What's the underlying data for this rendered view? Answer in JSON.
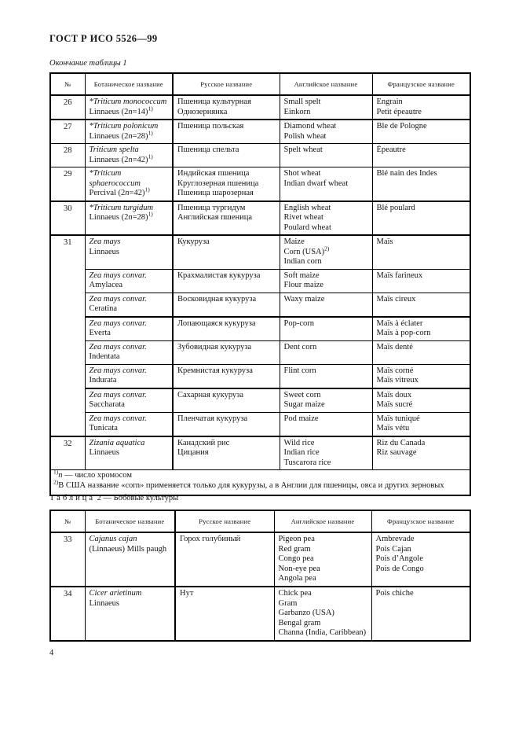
{
  "document": {
    "header": "ГОСТ Р ИСО 5526—99",
    "table1_caption": "Окончание таблицы 1",
    "table2_caption": {
      "label": "Таблица",
      "rest": "2 — Бобовые культуры"
    },
    "page_number": "4"
  },
  "columns": [
    "№",
    "Ботаническое название",
    "Русское название",
    "Английское название",
    "Французское название"
  ],
  "table1": {
    "rows": [
      {
        "num": "26",
        "h": 30,
        "bb": 2,
        "botanical": [
          "{i}*Triticum monococcum{/i}",
          "Linnaeus (2{i}n{/i}=14){sup}1){/sup}"
        ],
        "russian": [
          "Пшеница культурная",
          "Однозернянка"
        ],
        "english": [
          "Small spelt",
          "Einkorn"
        ],
        "french": [
          "Engrain",
          "Petit épeautre"
        ]
      },
      {
        "num": "27",
        "h": 30,
        "bb": 1,
        "botanical": [
          "{i}*Triticum polonicum{/i}",
          "Linnaeus (2{i}n{/i}=28){sup}1){/sup}"
        ],
        "russian": [
          "Пшеница польская"
        ],
        "english": [
          "Diamond wheat",
          "Polish wheat"
        ],
        "french": [
          "Ble de Pologne"
        ]
      },
      {
        "num": "28",
        "h": 28,
        "bb": 1,
        "botanical": [
          "{i}Triticum spelta{/i}",
          "Linnaeus (2{i}n{/i}=42){sup}1){/sup}"
        ],
        "russian": [
          "Пшеница спельта"
        ],
        "english": [
          "Spelt wheat"
        ],
        "french": [
          "Épeautre"
        ]
      },
      {
        "num": "29",
        "h": 41,
        "bb": 2,
        "botanical": [
          "{i}*Triticum sphaerococcum{/i}",
          "Percival (2{i}n{/i}=42){sup}1){/sup}"
        ],
        "russian": [
          "Индийская пшеница",
          "Круглозерная пшеница",
          "Пшеница шарозерная"
        ],
        "english": [
          "Shot wheat",
          "Indian dwarf wheat"
        ],
        "french": [
          "Blé nain des Indes"
        ]
      },
      {
        "num": "30",
        "h": 41,
        "bb": 2,
        "botanical": [
          "{i}*Triticum turgidum{/i}",
          "Linnaeus (2{i}n{/i}=28){sup}1){/sup}"
        ],
        "russian": [
          "Пшеница тургидум",
          "Английская пшеница"
        ],
        "english": [
          "English wheat",
          "Rivet wheat",
          "Poulard wheat"
        ],
        "french": [
          "Blé poulard"
        ]
      },
      {
        "num": "31",
        "numspan": 8,
        "numbb": 2,
        "h": 41,
        "bb": 1,
        "botanical": [
          "{i}Zea mays{/i}",
          "Linnaeus"
        ],
        "russian": [
          "Кукуруза"
        ],
        "english": [
          "Maize",
          "Corn (USA){sup}2){/sup}",
          "Indian corn"
        ],
        "french": [
          "Maïs"
        ]
      },
      {
        "h": 29,
        "bb": 1,
        "botanical": [
          "{i}Zea mays convar.{/i}",
          "Amylacea"
        ],
        "russian": [
          "Крахмалистая кукуруза"
        ],
        "english": [
          "Soft maize",
          "Flour maize"
        ],
        "french": [
          "Maïs farineux"
        ]
      },
      {
        "h": 28,
        "bb": 2,
        "botanical": [
          "{i}Zea mays convar.{/i}",
          "Ceratina"
        ],
        "russian": [
          "Восковидная кукуруза"
        ],
        "english": [
          "Waxy maize"
        ],
        "french": [
          "Maïs cireux"
        ]
      },
      {
        "h": 29,
        "bb": 1,
        "botanical": [
          "{i}Zea mays convar.{/i}",
          "Everta"
        ],
        "russian": [
          "Лопающаяся кукуруза"
        ],
        "english": [
          "Pop-corn"
        ],
        "french": [
          "Maïs à éclater",
          "Maïs à pop-corn"
        ]
      },
      {
        "h": 28,
        "bb": 1,
        "botanical": [
          "{i}Zea mays convar.{/i}",
          "Indentata"
        ],
        "russian": [
          "Зубовидная кукуруза"
        ],
        "english": [
          "Dent corn"
        ],
        "french": [
          "Maïs denté"
        ]
      },
      {
        "h": 29,
        "bb": 2,
        "botanical": [
          "{i}Zea mays convar.{/i}",
          "Indurata"
        ],
        "russian": [
          "Кремнистая кукуруза"
        ],
        "english": [
          "Flint corn"
        ],
        "french": [
          "Maïs corné",
          "Maïs vitreux"
        ]
      },
      {
        "h": 29,
        "bb": 1,
        "botanical": [
          "{i}Zea mays convar.{/i}",
          "Saccharata"
        ],
        "russian": [
          "Сахарная кукуруза"
        ],
        "english": [
          "Sweet corn",
          "Sugar maize"
        ],
        "french": [
          "Maïs doux",
          "Maïs sucré"
        ]
      },
      {
        "h": 29,
        "bb": 2,
        "botanical": [
          "{i}Zea mays convar.{/i}",
          "Tunicata"
        ],
        "russian": [
          "Пленчатая кукуруза"
        ],
        "english": [
          "Pod maize"
        ],
        "french": [
          "Maïs tuniqué",
          "Maïs vétu"
        ]
      },
      {
        "num": "32",
        "h": 41,
        "bb": 1,
        "botanical": [
          "{i}Zizania aquatica{/i}",
          "Linnaeus"
        ],
        "russian": [
          "Канадский рис",
          "Цицания"
        ],
        "english": [
          "Wild rice",
          "Indian rice",
          "Tuscarora rice"
        ],
        "french": [
          "Riz du Canada",
          "Riz sauvage"
        ]
      }
    ],
    "footnotes": [
      "{sup}1){/sup}{i}n{/i} — число хромосом",
      "{sup}2){/sup}В США название «corn» применяется только для кукурузы, а в Англии для пшеницы, овса и других зерновых"
    ],
    "footnotes_height": 32
  },
  "table2": {
    "rows": [
      {
        "num": "33",
        "h": 69,
        "bb": 2,
        "botanical": [
          "{i}Cajanus cajan{/i}",
          "(Linnaeus) Mills paugh"
        ],
        "russian": [
          "Горох голубиный"
        ],
        "english": [
          "Pigeon pea",
          "Red gram",
          "Congo pea",
          "Non-eye pea",
          "Angola pea"
        ],
        "french": [
          "Ambrevade",
          "Pois Cajan",
          "Pois d’Angole",
          "Pois de Congo"
        ]
      },
      {
        "num": "34",
        "h": 68,
        "bb": 2,
        "botanical": [
          "{i}Cicer arietinum{/i}",
          "Linnaeus"
        ],
        "russian": [
          "Нут"
        ],
        "english": [
          "Chick pea",
          "Gram",
          "Garbanzo (USA)",
          "Bengal gram",
          "Channa (India, Caribbean)"
        ],
        "french": [
          "Pois chiche"
        ]
      }
    ]
  }
}
